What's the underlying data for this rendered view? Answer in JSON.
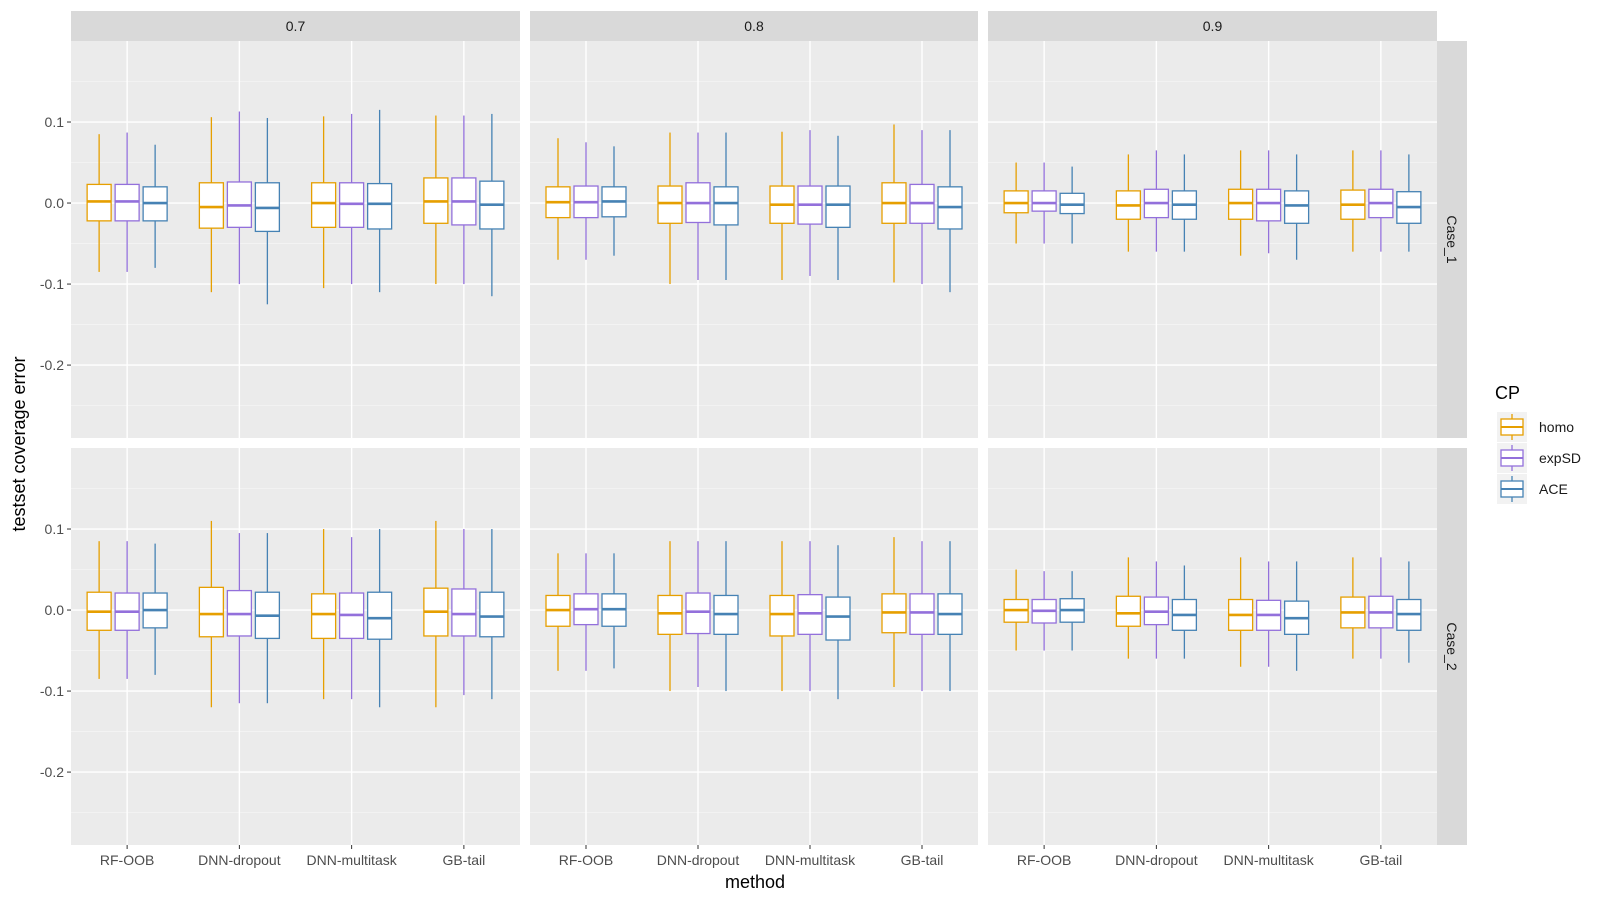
{
  "chart_data": {
    "type": "boxplot",
    "title": "",
    "xlabel": "method",
    "ylabel": "testset coverage error",
    "ylim": [
      -0.29,
      0.2
    ],
    "yticks": [
      {
        "value": 0.1,
        "label": "0.1"
      },
      {
        "value": 0.0,
        "label": "0.0"
      },
      {
        "value": -0.1,
        "label": "-0.1"
      },
      {
        "value": -0.2,
        "label": "-0.2"
      }
    ],
    "categories": [
      "RF-OOB",
      "DNN-dropout",
      "DNN-multitask",
      "GB-tail"
    ],
    "facet_columns": [
      "0.7",
      "0.8",
      "0.9"
    ],
    "facet_rows": [
      "Case_1",
      "Case_2"
    ],
    "legend": {
      "title": "CP",
      "position": "right",
      "entries": [
        {
          "name": "homo",
          "color": "#E69F00"
        },
        {
          "name": "expSD",
          "color": "#9370DB"
        },
        {
          "name": "ACE",
          "color": "#4682B4"
        }
      ]
    },
    "series_names": [
      "homo",
      "expSD",
      "ACE"
    ],
    "box_stats_order": [
      "lower_whisker",
      "q1",
      "median",
      "q3",
      "upper_whisker"
    ],
    "panels": [
      {
        "col": "0.7",
        "row": "Case_1",
        "boxes": {
          "RF-OOB": {
            "homo": [
              -0.085,
              -0.022,
              0.002,
              0.023,
              0.085
            ],
            "expSD": [
              -0.085,
              -0.022,
              0.002,
              0.023,
              0.087
            ],
            "ACE": [
              -0.08,
              -0.022,
              0.0,
              0.02,
              0.072
            ]
          },
          "DNN-dropout": {
            "homo": [
              -0.11,
              -0.031,
              -0.005,
              0.025,
              0.106
            ],
            "expSD": [
              -0.1,
              -0.03,
              -0.003,
              0.026,
              0.113
            ],
            "ACE": [
              -0.125,
              -0.035,
              -0.006,
              0.025,
              0.105
            ]
          },
          "DNN-multitask": {
            "homo": [
              -0.105,
              -0.03,
              0.0,
              0.025,
              0.107
            ],
            "expSD": [
              -0.1,
              -0.03,
              -0.001,
              0.025,
              0.11
            ],
            "ACE": [
              -0.11,
              -0.032,
              -0.001,
              0.024,
              0.115
            ]
          },
          "GB-tail": {
            "homo": [
              -0.1,
              -0.025,
              0.002,
              0.031,
              0.108
            ],
            "expSD": [
              -0.1,
              -0.027,
              0.002,
              0.031,
              0.108
            ],
            "ACE": [
              -0.115,
              -0.032,
              -0.002,
              0.027,
              0.11
            ]
          }
        }
      },
      {
        "col": "0.8",
        "row": "Case_1",
        "boxes": {
          "RF-OOB": {
            "homo": [
              -0.07,
              -0.018,
              0.001,
              0.02,
              0.08
            ],
            "expSD": [
              -0.07,
              -0.018,
              0.001,
              0.021,
              0.075
            ],
            "ACE": [
              -0.065,
              -0.017,
              0.002,
              0.02,
              0.07
            ]
          },
          "DNN-dropout": {
            "homo": [
              -0.1,
              -0.025,
              0.0,
              0.021,
              0.087
            ],
            "expSD": [
              -0.095,
              -0.024,
              0.0,
              0.025,
              0.087
            ],
            "ACE": [
              -0.095,
              -0.027,
              0.0,
              0.02,
              0.087
            ]
          },
          "DNN-multitask": {
            "homo": [
              -0.095,
              -0.025,
              -0.002,
              0.021,
              0.088
            ],
            "expSD": [
              -0.09,
              -0.026,
              -0.002,
              0.021,
              0.09
            ],
            "ACE": [
              -0.095,
              -0.03,
              -0.002,
              0.021,
              0.083
            ]
          },
          "GB-tail": {
            "homo": [
              -0.098,
              -0.025,
              0.0,
              0.025,
              0.097
            ],
            "expSD": [
              -0.1,
              -0.025,
              0.0,
              0.023,
              0.09
            ],
            "ACE": [
              -0.11,
              -0.032,
              -0.005,
              0.02,
              0.09
            ]
          }
        }
      },
      {
        "col": "0.9",
        "row": "Case_1",
        "boxes": {
          "RF-OOB": {
            "homo": [
              -0.05,
              -0.012,
              0.0,
              0.015,
              0.05
            ],
            "expSD": [
              -0.05,
              -0.01,
              0.0,
              0.015,
              0.05
            ],
            "ACE": [
              -0.05,
              -0.013,
              -0.002,
              0.012,
              0.045
            ]
          },
          "DNN-dropout": {
            "homo": [
              -0.06,
              -0.02,
              -0.003,
              0.015,
              0.06
            ],
            "expSD": [
              -0.06,
              -0.018,
              0.0,
              0.017,
              0.065
            ],
            "ACE": [
              -0.06,
              -0.02,
              -0.002,
              0.015,
              0.06
            ]
          },
          "DNN-multitask": {
            "homo": [
              -0.065,
              -0.02,
              0.0,
              0.017,
              0.065
            ],
            "expSD": [
              -0.062,
              -0.022,
              0.0,
              0.017,
              0.065
            ],
            "ACE": [
              -0.07,
              -0.025,
              -0.003,
              0.015,
              0.06
            ]
          },
          "GB-tail": {
            "homo": [
              -0.06,
              -0.02,
              -0.002,
              0.016,
              0.065
            ],
            "expSD": [
              -0.06,
              -0.018,
              0.0,
              0.017,
              0.065
            ],
            "ACE": [
              -0.06,
              -0.025,
              -0.005,
              0.014,
              0.06
            ]
          }
        }
      },
      {
        "col": "0.7",
        "row": "Case_2",
        "boxes": {
          "RF-OOB": {
            "homo": [
              -0.085,
              -0.025,
              -0.002,
              0.022,
              0.085
            ],
            "expSD": [
              -0.085,
              -0.025,
              -0.002,
              0.021,
              0.085
            ],
            "ACE": [
              -0.08,
              -0.022,
              0.0,
              0.021,
              0.082
            ]
          },
          "DNN-dropout": {
            "homo": [
              -0.12,
              -0.033,
              -0.005,
              0.028,
              0.11
            ],
            "expSD": [
              -0.115,
              -0.032,
              -0.005,
              0.024,
              0.095
            ],
            "ACE": [
              -0.115,
              -0.035,
              -0.007,
              0.022,
              0.095
            ]
          },
          "DNN-multitask": {
            "homo": [
              -0.11,
              -0.035,
              -0.005,
              0.02,
              0.1
            ],
            "expSD": [
              -0.11,
              -0.035,
              -0.006,
              0.021,
              0.09
            ],
            "ACE": [
              -0.12,
              -0.036,
              -0.01,
              0.022,
              0.1
            ]
          },
          "GB-tail": {
            "homo": [
              -0.12,
              -0.032,
              -0.002,
              0.027,
              0.11
            ],
            "expSD": [
              -0.105,
              -0.032,
              -0.005,
              0.026,
              0.1
            ],
            "ACE": [
              -0.11,
              -0.033,
              -0.008,
              0.022,
              0.1
            ]
          }
        }
      },
      {
        "col": "0.8",
        "row": "Case_2",
        "boxes": {
          "RF-OOB": {
            "homo": [
              -0.075,
              -0.02,
              0.0,
              0.018,
              0.07
            ],
            "expSD": [
              -0.075,
              -0.018,
              0.001,
              0.02,
              0.07
            ],
            "ACE": [
              -0.072,
              -0.02,
              0.001,
              0.02,
              0.07
            ]
          },
          "DNN-dropout": {
            "homo": [
              -0.1,
              -0.03,
              -0.004,
              0.018,
              0.085
            ],
            "expSD": [
              -0.095,
              -0.029,
              -0.002,
              0.021,
              0.085
            ],
            "ACE": [
              -0.1,
              -0.03,
              -0.005,
              0.018,
              0.085
            ]
          },
          "DNN-multitask": {
            "homo": [
              -0.1,
              -0.032,
              -0.005,
              0.018,
              0.085
            ],
            "expSD": [
              -0.1,
              -0.03,
              -0.004,
              0.019,
              0.085
            ],
            "ACE": [
              -0.11,
              -0.037,
              -0.008,
              0.016,
              0.08
            ]
          },
          "GB-tail": {
            "homo": [
              -0.095,
              -0.028,
              -0.003,
              0.02,
              0.09
            ],
            "expSD": [
              -0.1,
              -0.03,
              -0.003,
              0.02,
              0.085
            ],
            "ACE": [
              -0.1,
              -0.03,
              -0.005,
              0.02,
              0.085
            ]
          }
        }
      },
      {
        "col": "0.9",
        "row": "Case_2",
        "boxes": {
          "RF-OOB": {
            "homo": [
              -0.05,
              -0.015,
              0.0,
              0.013,
              0.05
            ],
            "expSD": [
              -0.05,
              -0.016,
              -0.001,
              0.013,
              0.048
            ],
            "ACE": [
              -0.05,
              -0.015,
              0.0,
              0.014,
              0.048
            ]
          },
          "DNN-dropout": {
            "homo": [
              -0.06,
              -0.02,
              -0.004,
              0.017,
              0.065
            ],
            "expSD": [
              -0.06,
              -0.018,
              -0.002,
              0.016,
              0.06
            ],
            "ACE": [
              -0.06,
              -0.025,
              -0.006,
              0.013,
              0.055
            ]
          },
          "DNN-multitask": {
            "homo": [
              -0.07,
              -0.025,
              -0.006,
              0.013,
              0.065
            ],
            "expSD": [
              -0.07,
              -0.025,
              -0.006,
              0.012,
              0.06
            ],
            "ACE": [
              -0.075,
              -0.03,
              -0.01,
              0.011,
              0.06
            ]
          },
          "GB-tail": {
            "homo": [
              -0.06,
              -0.022,
              -0.003,
              0.016,
              0.065
            ],
            "expSD": [
              -0.06,
              -0.022,
              -0.003,
              0.017,
              0.065
            ],
            "ACE": [
              -0.065,
              -0.025,
              -0.005,
              0.013,
              0.06
            ]
          }
        }
      }
    ]
  }
}
